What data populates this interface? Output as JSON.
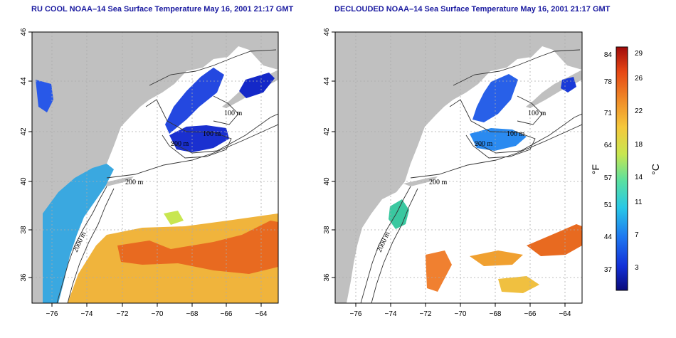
{
  "panels": [
    {
      "title": "RU COOL NOAA–14 Sea Surface Temperature May 16, 2001 21:17 GMT",
      "x_ticks": [
        "−76",
        "−74",
        "−72",
        "−70",
        "−68",
        "−66",
        "−64"
      ],
      "y_ticks": [
        "46",
        "44",
        "42",
        "40",
        "38",
        "36"
      ],
      "contour_labels": [
        "100 m",
        "100 m",
        "200 m",
        "200 m",
        "2000 m"
      ]
    },
    {
      "title": "DECLOUDED NOAA–14 Sea Surface Temperature May 16, 2001 21:17 GMT",
      "x_ticks": [
        "−76",
        "−74",
        "−72",
        "−70",
        "−68",
        "−66",
        "−64"
      ],
      "y_ticks": [
        "46",
        "44",
        "42",
        "40",
        "38",
        "36"
      ],
      "contour_labels": [
        "100 m",
        "100 m",
        "200 m",
        "200 m",
        "2000 m"
      ]
    }
  ],
  "colorbar": {
    "fahrenheit_label": "°F",
    "celsius_label": "°C",
    "fahrenheit_ticks": [
      "84",
      "78",
      "71",
      "64",
      "57",
      "51",
      "44",
      "37"
    ],
    "celsius_ticks": [
      "29",
      "26",
      "22",
      "18",
      "14",
      "11",
      "7",
      "3"
    ],
    "colors": [
      "#0a0a7a",
      "#1230d8",
      "#1e78f0",
      "#28c8e6",
      "#5ae0a0",
      "#c8e650",
      "#f5c83c",
      "#f08c28",
      "#e64614",
      "#a00a0a"
    ]
  },
  "colors": {
    "land": "#c0c0c0",
    "ocean": "#ffffff",
    "title": "#1a1aa0",
    "grid": "#aaaaaa"
  }
}
